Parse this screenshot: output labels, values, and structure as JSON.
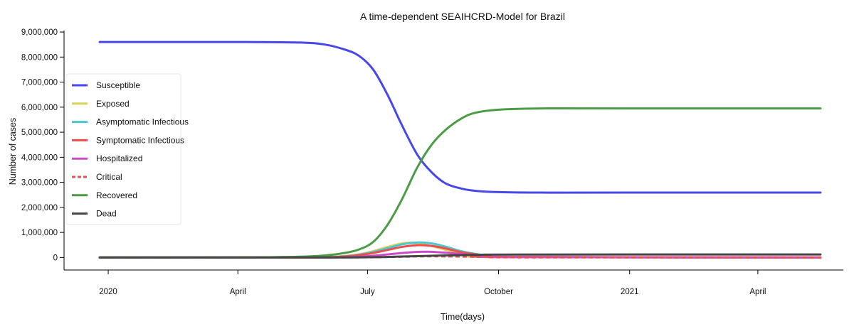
{
  "chart_data": {
    "type": "line",
    "title": "A time-dependent SEAIHCRD-Model for Brazil",
    "xlabel": "Time(days)",
    "ylabel": "Number of cases",
    "x_range": [
      "2019-12-01",
      "2021-05-31"
    ],
    "x_ticks": [
      {
        "date": "2020-01-01",
        "label": "2020"
      },
      {
        "date": "2020-04-01",
        "label": "April"
      },
      {
        "date": "2020-07-01",
        "label": "July"
      },
      {
        "date": "2020-10-01",
        "label": "October"
      },
      {
        "date": "2021-01-01",
        "label": "2021"
      },
      {
        "date": "2021-04-01",
        "label": "April"
      }
    ],
    "ylim": [
      -500000,
      9200000
    ],
    "y_ticks": [
      0,
      1000000,
      2000000,
      3000000,
      4000000,
      5000000,
      6000000,
      7000000,
      8000000,
      9000000
    ],
    "y_tick_labels": [
      "0",
      "1,000,000",
      "2,000,000",
      "3,000,000",
      "4,000,000",
      "5,000,000",
      "6,000,000",
      "7,000,000",
      "8,000,000",
      "9,000,000"
    ],
    "grid": false,
    "legend_position": "center-left",
    "series": [
      {
        "name": "Susceptible",
        "color": "#4747ee",
        "dash": "solid",
        "x": [
          "2019-12-26",
          "2020-04-01",
          "2020-05-15",
          "2020-06-01",
          "2020-06-15",
          "2020-06-25",
          "2020-07-05",
          "2020-07-15",
          "2020-07-25",
          "2020-08-05",
          "2020-08-15",
          "2020-08-25",
          "2020-09-05",
          "2020-09-15",
          "2020-10-01",
          "2020-11-01",
          "2021-01-01",
          "2021-05-15"
        ],
        "y": [
          8600000,
          8600000,
          8580000,
          8500000,
          8300000,
          8050000,
          7500000,
          6500000,
          5300000,
          4100000,
          3400000,
          2950000,
          2750000,
          2660000,
          2610000,
          2590000,
          2590000,
          2590000
        ]
      },
      {
        "name": "Exposed",
        "color": "#d6d35c",
        "dash": "solid",
        "x": [
          "2019-12-26",
          "2020-05-15",
          "2020-06-15",
          "2020-07-01",
          "2020-07-15",
          "2020-07-25",
          "2020-08-01",
          "2020-08-10",
          "2020-08-20",
          "2020-09-01",
          "2020-09-15",
          "2020-10-01",
          "2021-05-15"
        ],
        "y": [
          0,
          5000,
          60000,
          200000,
          420000,
          560000,
          590000,
          520000,
          380000,
          200000,
          80000,
          20000,
          0
        ]
      },
      {
        "name": "Asymptomatic Infectious",
        "color": "#4cc6d0",
        "dash": "solid",
        "x": [
          "2019-12-26",
          "2020-05-15",
          "2020-06-15",
          "2020-07-01",
          "2020-07-15",
          "2020-07-25",
          "2020-08-05",
          "2020-08-15",
          "2020-08-25",
          "2020-09-05",
          "2020-09-20",
          "2020-10-05",
          "2021-05-15"
        ],
        "y": [
          0,
          4000,
          50000,
          170000,
          370000,
          520000,
          600000,
          560000,
          430000,
          250000,
          100000,
          25000,
          0
        ]
      },
      {
        "name": "Symptomatic Infectious",
        "color": "#ee4d4d",
        "dash": "solid",
        "x": [
          "2019-12-26",
          "2020-05-15",
          "2020-06-15",
          "2020-07-01",
          "2020-07-15",
          "2020-07-25",
          "2020-08-05",
          "2020-08-15",
          "2020-08-25",
          "2020-09-05",
          "2020-09-20",
          "2020-10-05",
          "2021-05-15"
        ],
        "y": [
          0,
          3000,
          40000,
          140000,
          300000,
          420000,
          490000,
          460000,
          360000,
          210000,
          90000,
          20000,
          0
        ]
      },
      {
        "name": "Hospitalized",
        "color": "#c94bc9",
        "dash": "solid",
        "x": [
          "2019-12-26",
          "2020-05-20",
          "2020-06-20",
          "2020-07-05",
          "2020-07-20",
          "2020-08-01",
          "2020-08-12",
          "2020-08-25",
          "2020-09-10",
          "2020-09-25",
          "2020-10-10",
          "2021-05-15"
        ],
        "y": [
          0,
          2000,
          20000,
          70000,
          150000,
          210000,
          230000,
          190000,
          110000,
          50000,
          15000,
          0
        ]
      },
      {
        "name": "Critical",
        "color": "#ee4d4d",
        "dash": "dashed",
        "x": [
          "2019-12-26",
          "2020-06-15",
          "2020-07-15",
          "2020-08-10",
          "2020-09-01",
          "2020-09-25",
          "2020-10-15",
          "2021-05-15"
        ],
        "y": [
          0,
          5000,
          20000,
          45000,
          40000,
          20000,
          5000,
          0
        ]
      },
      {
        "name": "Recovered",
        "color": "#4a9d45",
        "dash": "solid",
        "x": [
          "2019-12-26",
          "2020-04-01",
          "2020-05-15",
          "2020-06-01",
          "2020-06-15",
          "2020-06-25",
          "2020-07-05",
          "2020-07-15",
          "2020-07-25",
          "2020-08-05",
          "2020-08-15",
          "2020-08-25",
          "2020-09-05",
          "2020-09-15",
          "2020-10-01",
          "2020-11-01",
          "2021-01-01",
          "2021-05-15"
        ],
        "y": [
          0,
          2000,
          30000,
          80000,
          180000,
          320000,
          620000,
          1300000,
          2300000,
          3600000,
          4500000,
          5100000,
          5550000,
          5780000,
          5900000,
          5950000,
          5950000,
          5950000
        ]
      },
      {
        "name": "Dead",
        "color": "#444444",
        "dash": "solid",
        "x": [
          "2019-12-26",
          "2020-06-01",
          "2020-07-01",
          "2020-07-20",
          "2020-08-10",
          "2020-09-01",
          "2020-09-20",
          "2020-10-15",
          "2021-05-15"
        ],
        "y": [
          0,
          1000,
          10000,
          30000,
          60000,
          90000,
          110000,
          118000,
          120000
        ]
      }
    ]
  }
}
